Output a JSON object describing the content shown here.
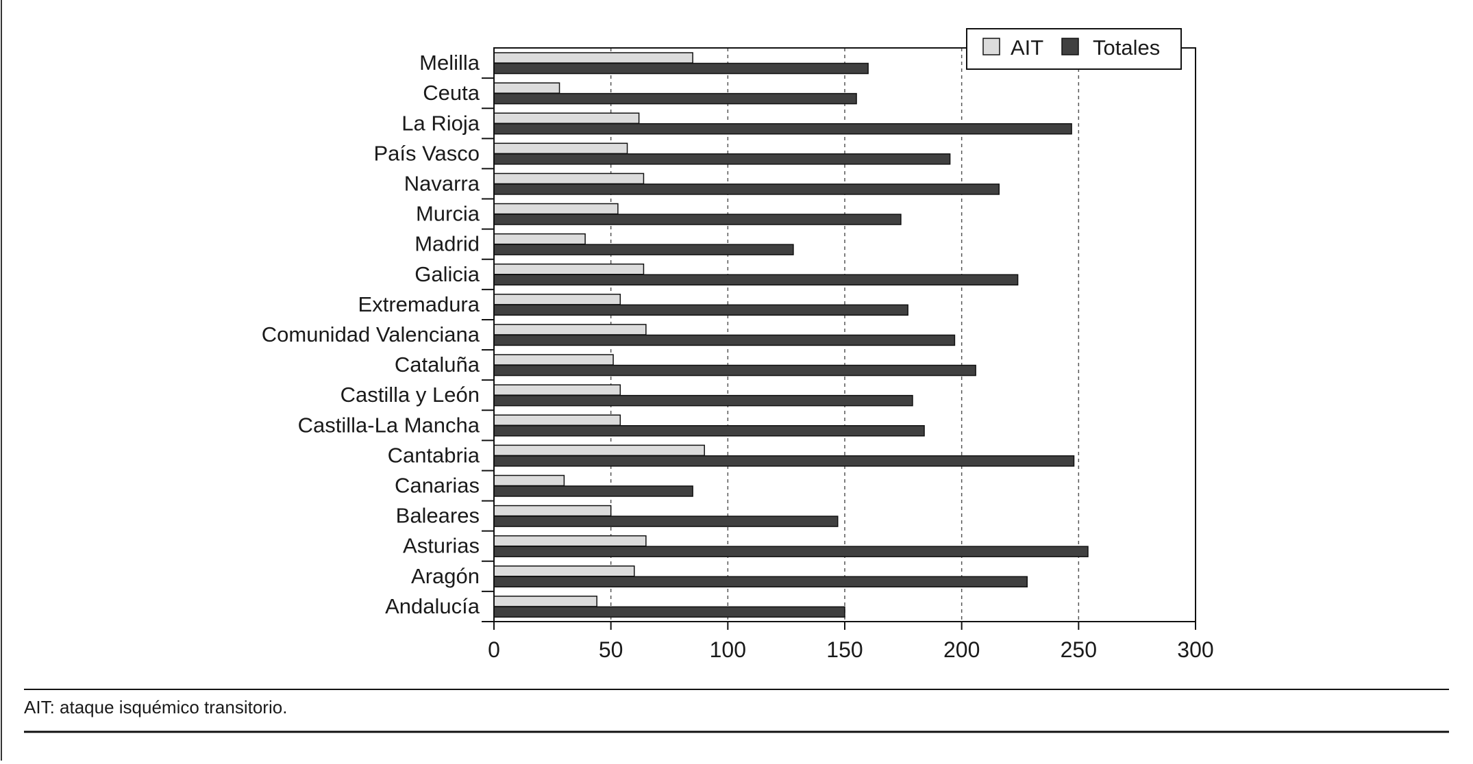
{
  "chart_data": {
    "type": "bar",
    "orientation": "horizontal",
    "categories": [
      "Melilla",
      "Ceuta",
      "La Rioja",
      "País Vasco",
      "Navarra",
      "Murcia",
      "Madrid",
      "Galicia",
      "Extremadura",
      "Comunidad Valenciana",
      "Cataluña",
      "Castilla y León",
      "Castilla-La Mancha",
      "Cantabria",
      "Canarias",
      "Baleares",
      "Asturias",
      "Aragón",
      "Andalucía"
    ],
    "series": [
      {
        "name": "AIT",
        "color": "#dcdcdc",
        "values": [
          85,
          28,
          62,
          57,
          64,
          53,
          39,
          64,
          54,
          65,
          51,
          54,
          54,
          90,
          30,
          50,
          65,
          60,
          44
        ]
      },
      {
        "name": "Totales",
        "color": "#404040",
        "values": [
          160,
          155,
          247,
          195,
          216,
          174,
          128,
          224,
          177,
          197,
          206,
          179,
          184,
          248,
          85,
          147,
          254,
          228,
          150
        ]
      }
    ],
    "xlim": [
      0,
      300
    ],
    "xticks": [
      "0",
      "50",
      "100",
      "150",
      "200",
      "250",
      "300"
    ],
    "grid": "vertical dashed",
    "legend_position": "top-right"
  },
  "footnote": "AIT: ataque isquémico transitorio."
}
